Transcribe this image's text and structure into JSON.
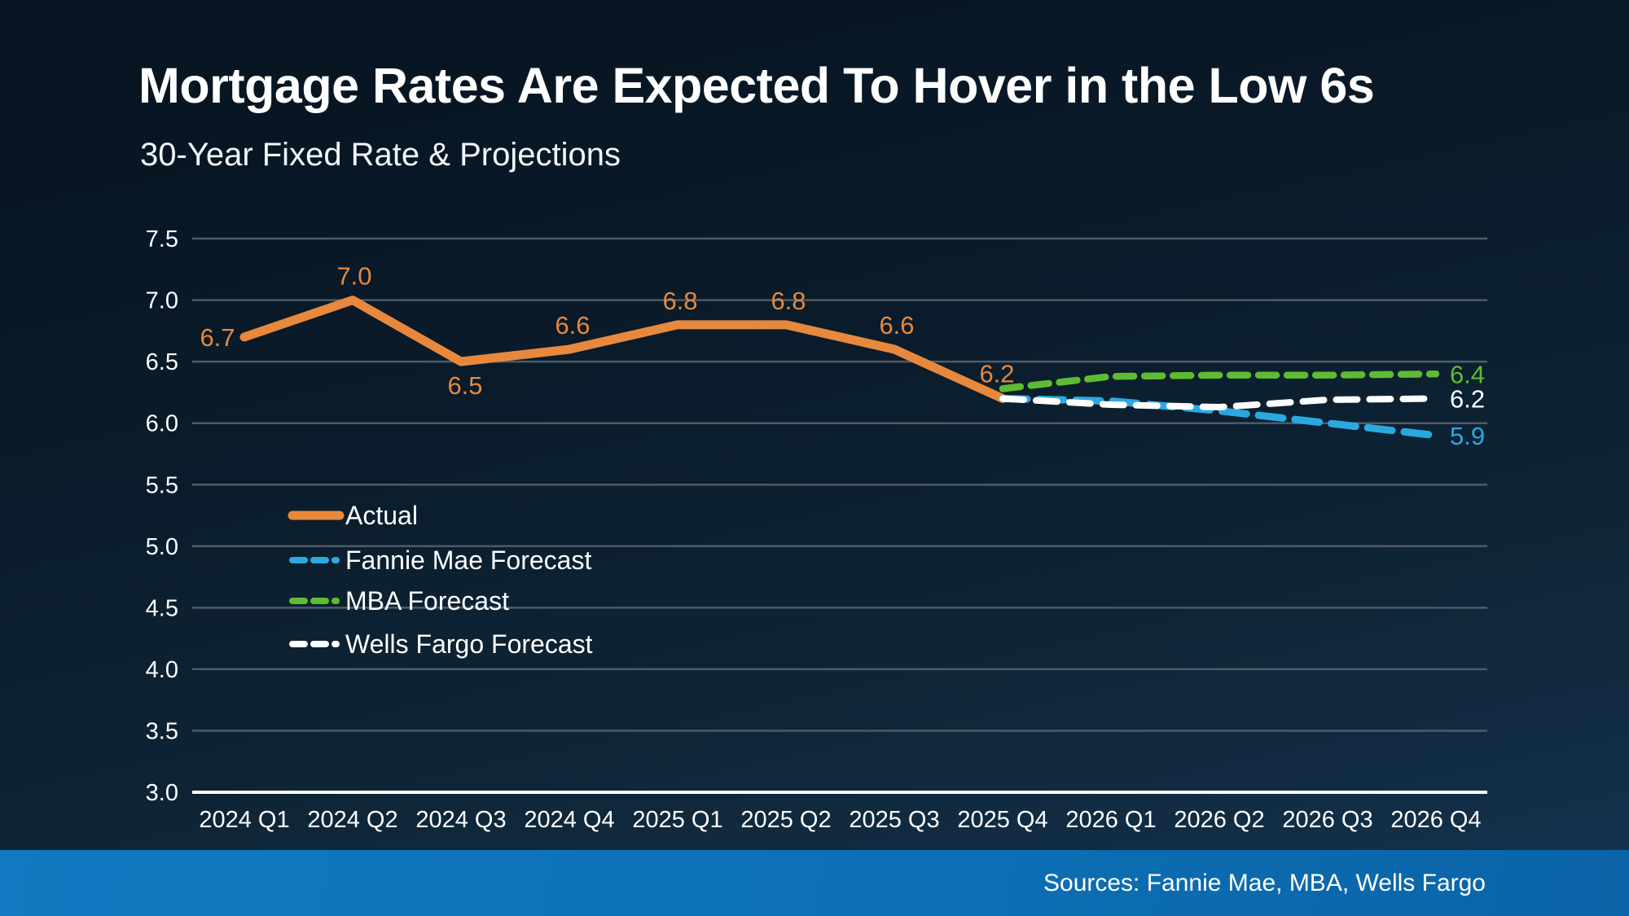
{
  "slide": {
    "title": "Mortgage Rates Are Expected To Hover in the Low 6s",
    "subtitle": "30-Year Fixed Rate & Projections",
    "source_note": "Sources: Fannie Mae, MBA, Wells Fargo"
  },
  "colors": {
    "background_top": "#071320",
    "background_bottom": "#143450",
    "text": "#ffffff",
    "gridline": "#4f5b67",
    "axis_line": "#ffffff",
    "footer_bar": "#0d70b5",
    "actual": "#e8883c",
    "fannie_mae": "#2aa9e1",
    "mba": "#5fbb31",
    "wells_fargo": "#ffffff"
  },
  "chart_data": {
    "type": "line",
    "title": "30-Year Fixed Rate & Projections",
    "categories": [
      "2024 Q1",
      "2024 Q2",
      "2024 Q3",
      "2024 Q4",
      "2025 Q1",
      "2025 Q2",
      "2025 Q3",
      "2025 Q4",
      "2026 Q1",
      "2026 Q2",
      "2026 Q3",
      "2026 Q4"
    ],
    "y_axis": {
      "min": 3.0,
      "max": 7.5,
      "step": 0.5,
      "tick_labels": [
        "3.0",
        "3.5",
        "4.0",
        "4.5",
        "5.0",
        "5.5",
        "6.0",
        "6.5",
        "7.0",
        "7.5"
      ]
    },
    "grid": "horizontal",
    "legend_position": "inside-left",
    "series": [
      {
        "name": "Actual",
        "color": "#e8883c",
        "style": "solid",
        "start_index": 0,
        "values": [
          6.7,
          7.0,
          6.5,
          6.6,
          6.8,
          6.8,
          6.6,
          6.2
        ],
        "point_labels": [
          "6.7",
          "7.0",
          "6.5",
          "6.6",
          "6.8",
          "6.8",
          "6.6",
          "6.2"
        ]
      },
      {
        "name": "Fannie Mae Forecast",
        "color": "#2aa9e1",
        "style": "dashed",
        "start_index": 7,
        "values": [
          6.2,
          6.18,
          6.1,
          6.0,
          5.9
        ],
        "end_label": "5.9"
      },
      {
        "name": "MBA Forecast",
        "color": "#5fbb31",
        "style": "dashed",
        "start_index": 7,
        "values": [
          6.28,
          6.38,
          6.39,
          6.39,
          6.4
        ],
        "end_label": "6.4"
      },
      {
        "name": "Wells Fargo Forecast",
        "color": "#ffffff",
        "style": "dashed",
        "start_index": 7,
        "values": [
          6.2,
          6.15,
          6.13,
          6.19,
          6.2
        ],
        "end_label": "6.2"
      }
    ]
  }
}
